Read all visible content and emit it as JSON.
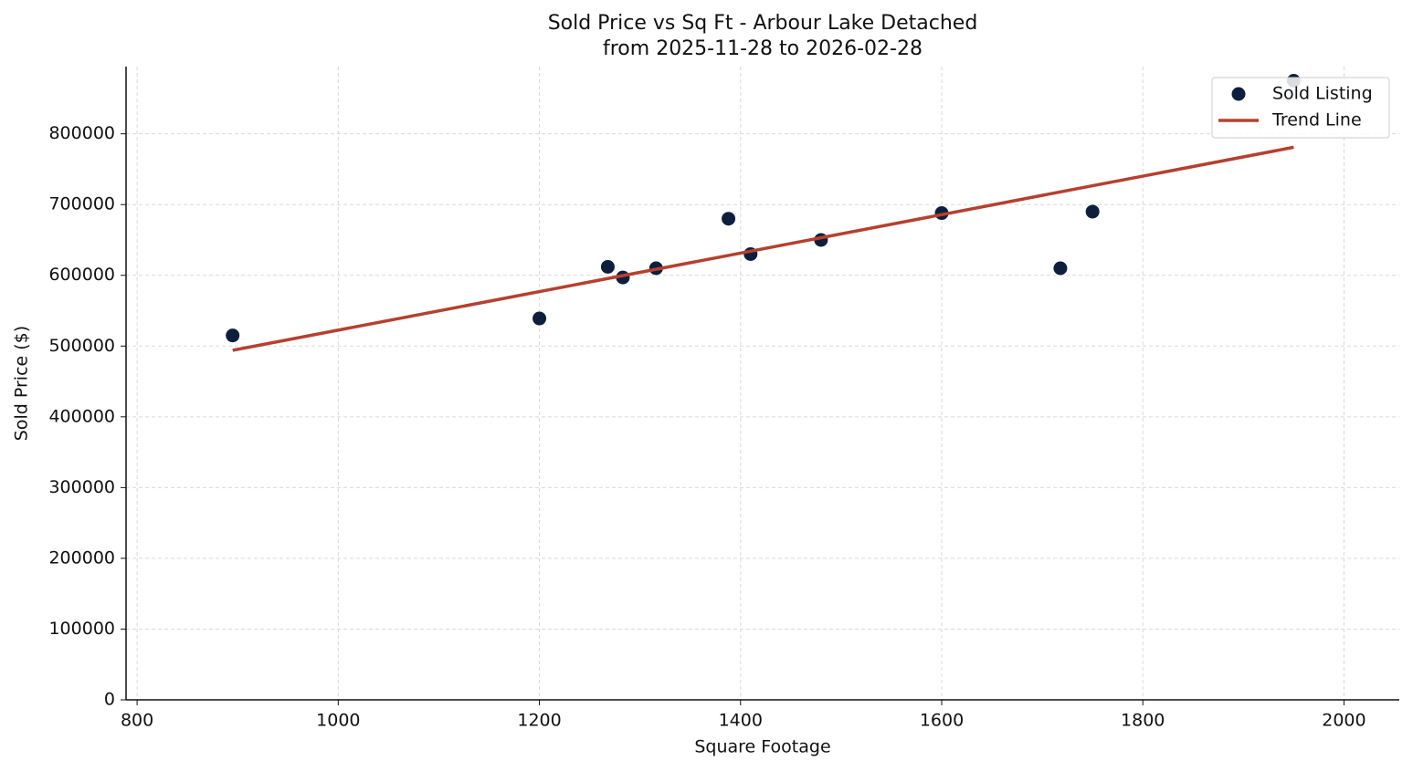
{
  "chart_data": {
    "type": "scatter",
    "title": "Sold Price vs Sq Ft - Arbour Lake Detached",
    "subtitle": "from 2025-11-28 to 2026-02-28",
    "x_label": "Square Footage",
    "y_label": "Sold Price ($)",
    "xlim": [
      789,
      2055
    ],
    "ylim": [
      0,
      895000
    ],
    "xticks": [
      800,
      1000,
      1200,
      1400,
      1600,
      1800,
      2000
    ],
    "yticks": [
      0,
      100000,
      200000,
      300000,
      400000,
      500000,
      600000,
      700000,
      800000
    ],
    "grid": true,
    "legend": "upper right",
    "series": [
      {
        "name": "Sold Listing",
        "type": "scatter",
        "color": "#0d1f3c",
        "x": [
          895,
          1200,
          1268,
          1283,
          1316,
          1388,
          1410,
          1480,
          1600,
          1718,
          1750,
          1950
        ],
        "values": [
          515000,
          539000,
          612000,
          597000,
          610000,
          680000,
          630000,
          650000,
          688000,
          610000,
          690000,
          875000
        ]
      },
      {
        "name": "Trend Line",
        "type": "line",
        "color": "#b5402f",
        "x": [
          895,
          1950
        ],
        "values": [
          494000,
          781000
        ]
      }
    ]
  }
}
